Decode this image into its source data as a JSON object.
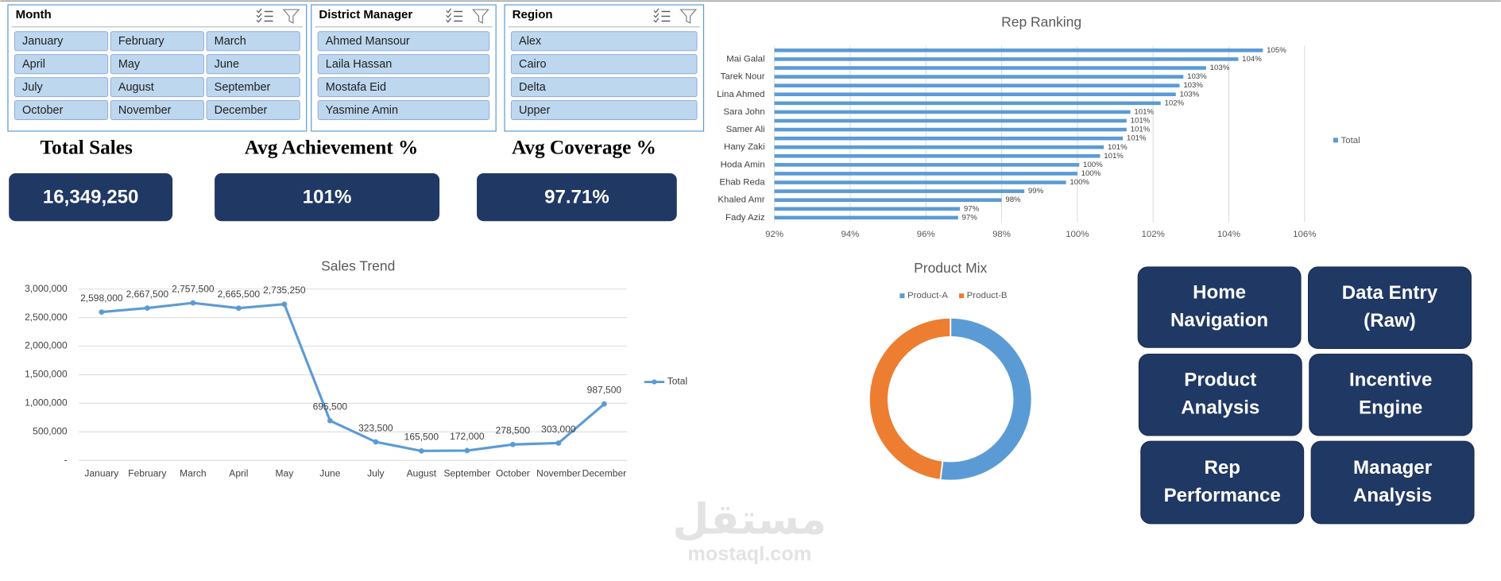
{
  "slicers": [
    {
      "title": "Month",
      "items": [
        "January",
        "February",
        "March",
        "April",
        "May",
        "June",
        "July",
        "August",
        "September",
        "October",
        "November",
        "December"
      ]
    },
    {
      "title": "District Manager",
      "items": [
        "Ahmed Mansour",
        "Laila Hassan",
        "Mostafa Eid",
        "Yasmine Amin"
      ]
    },
    {
      "title": "Region",
      "items": [
        "Alex",
        "Cairo",
        "Delta",
        "Upper"
      ]
    }
  ],
  "kpis": [
    {
      "title": "Total Sales",
      "value": "16,349,250"
    },
    {
      "title": "Avg Achievement %",
      "value": "101%"
    },
    {
      "title": "Avg Coverage %",
      "value": "97.71%"
    }
  ],
  "navigation": [
    {
      "lines": [
        "Home",
        "Navigation"
      ]
    },
    {
      "lines": [
        "Data Entry",
        "(Raw)"
      ]
    },
    {
      "lines": [
        "Product",
        "Analysis"
      ]
    },
    {
      "lines": [
        "Incentive",
        "Engine"
      ]
    },
    {
      "lines": [
        "Rep",
        "Performance"
      ]
    },
    {
      "lines": [
        "Manager",
        "Analysis"
      ]
    }
  ],
  "watermark": {
    "arabic": "مستقل",
    "latin": "mostaql.com"
  },
  "chart_data": [
    {
      "type": "bar",
      "orientation": "horizontal",
      "title": "Rep Ranking",
      "categories": [
        null,
        "Mai Galal",
        null,
        "Tarek Nour",
        null,
        "Lina Ahmed",
        null,
        "Sara John",
        null,
        "Samer Ali",
        null,
        "Hany Zaki",
        null,
        "Hoda Amin",
        null,
        "Ehab Reda",
        null,
        "Khaled Amr",
        null,
        "Fady Aziz"
      ],
      "series": [
        {
          "name": "Total",
          "color": "#5b9bd5",
          "values": [
            104.9,
            104.25,
            103.4,
            102.8,
            102.7,
            102.6,
            102.2,
            101.4,
            101.3,
            101.3,
            101.2,
            100.7,
            100.6,
            100.05,
            100.0,
            99.7,
            98.6,
            98.0,
            96.9,
            96.85
          ],
          "value_labels": [
            "105%",
            "104%",
            "103%",
            "103%",
            "103%",
            "103%",
            "102%",
            "101%",
            "101%",
            "101%",
            "101%",
            "101%",
            "101%",
            "100%",
            "100%",
            "100%",
            "99%",
            "98%",
            "97%",
            "97%"
          ]
        }
      ],
      "xlim": [
        92,
        106
      ],
      "xticks": [
        {
          "value": 92,
          "label": "92%"
        },
        {
          "value": 94,
          "label": "94%"
        },
        {
          "value": 96,
          "label": "96%"
        },
        {
          "value": 98,
          "label": "98%"
        },
        {
          "value": 100,
          "label": "100%"
        },
        {
          "value": 102,
          "label": "102%"
        },
        {
          "value": 104,
          "label": "104%"
        },
        {
          "value": 106,
          "label": "106%"
        }
      ],
      "grid": true,
      "legend": "right"
    },
    {
      "type": "line",
      "title": "Sales Trend",
      "categories": [
        "January",
        "February",
        "March",
        "April",
        "May",
        "June",
        "July",
        "August",
        "September",
        "October",
        "November",
        "December"
      ],
      "series": [
        {
          "name": "Total",
          "color": "#5b9bd5",
          "values": [
            2598000,
            2667500,
            2757500,
            2665500,
            2735250,
            695500,
            323500,
            165500,
            172000,
            278500,
            303000,
            987500
          ],
          "value_labels": [
            "2,598,000",
            "2,667,500",
            "2,757,500",
            "2,665,500",
            "2,735,250",
            "695,500",
            "323,500",
            "165,500",
            "172,000",
            "278,500",
            "303,000",
            "987,500"
          ]
        }
      ],
      "ylim": [
        0,
        3000000
      ],
      "yticks": [
        {
          "value": 0,
          "label": "-"
        },
        {
          "value": 500000,
          "label": "500,000"
        },
        {
          "value": 1000000,
          "label": "1,000,000"
        },
        {
          "value": 1500000,
          "label": "1,500,000"
        },
        {
          "value": 2000000,
          "label": "2,000,000"
        },
        {
          "value": 2500000,
          "label": "2,500,000"
        },
        {
          "value": 3000000,
          "label": "3,000,000"
        }
      ],
      "grid": true,
      "legend": "right"
    },
    {
      "type": "pie",
      "title": "Product Mix",
      "categories": [
        "Product-A",
        "Product-B"
      ],
      "values": [
        52,
        48
      ],
      "colors": [
        "#5b9bd5",
        "#ed7d31"
      ],
      "legend": "top"
    }
  ]
}
